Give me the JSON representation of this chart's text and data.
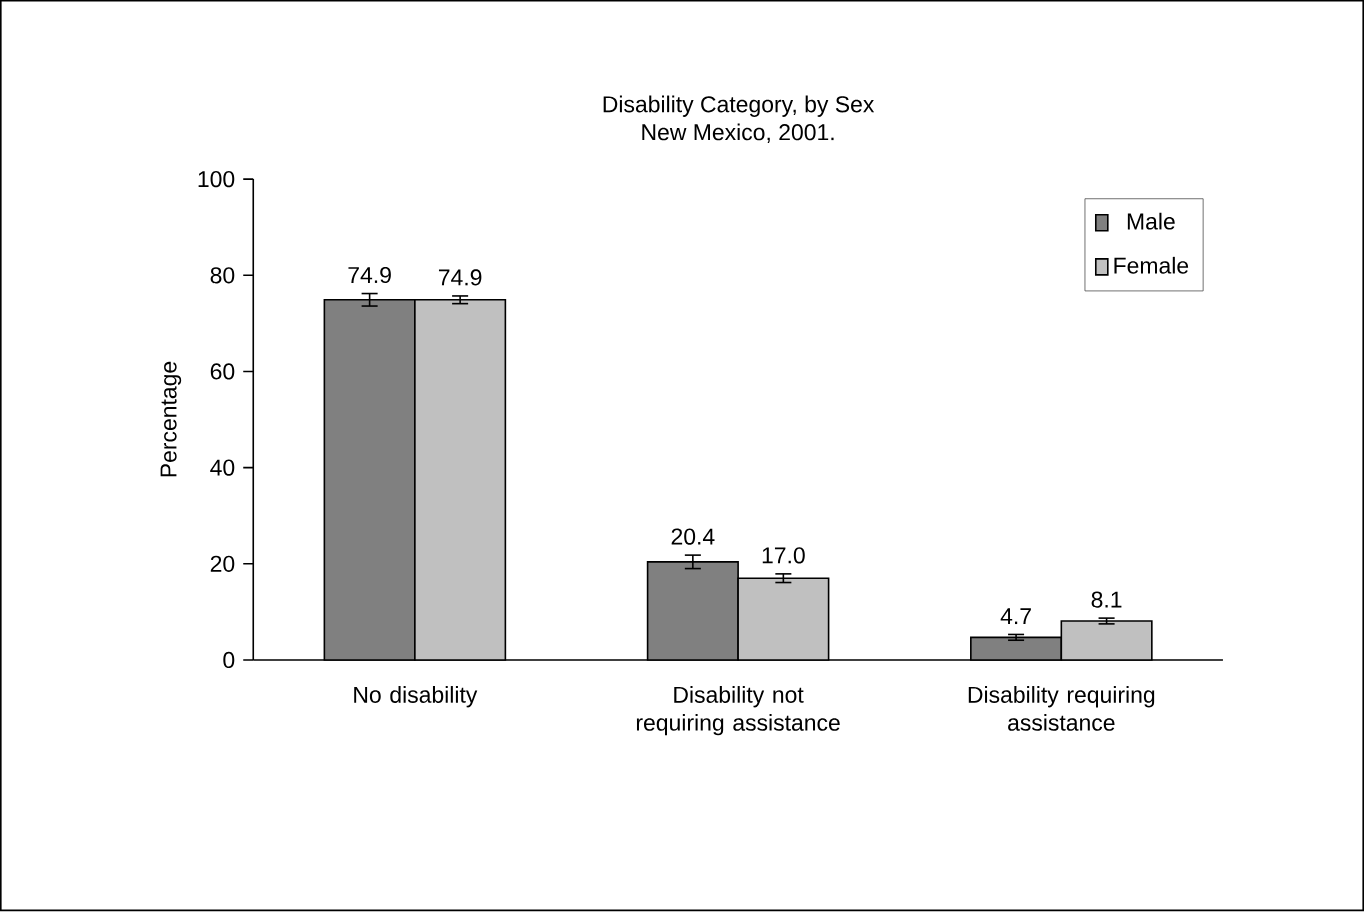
{
  "chart_data": {
    "type": "bar",
    "title": "Disability Category, by Sex",
    "subtitle": "New Mexico, 2001.",
    "ylabel": "Percentage",
    "categories": [
      "No disability",
      "Disability not requiring assistance",
      "Disability requiring assistance"
    ],
    "series": [
      {
        "name": "Male",
        "color": "#808080",
        "values": [
          74.9,
          20.4,
          4.7
        ],
        "errors": [
          1.3,
          1.4,
          0.6
        ],
        "value_labels": [
          "74.9",
          "20.4",
          "4.7"
        ]
      },
      {
        "name": "Female",
        "color": "#c0c0c0",
        "values": [
          74.9,
          17.0,
          8.1
        ],
        "errors": [
          0.8,
          0.9,
          0.6
        ],
        "value_labels": [
          "74.9",
          "17.0",
          "8.1"
        ]
      }
    ],
    "ylim": [
      0,
      100
    ],
    "yticks": [
      0,
      20,
      40,
      60,
      80,
      100
    ],
    "grid": false,
    "legend": "top right"
  }
}
